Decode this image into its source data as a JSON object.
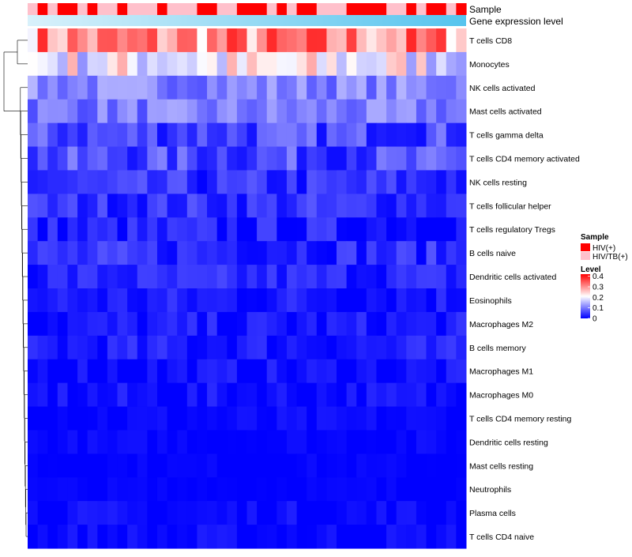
{
  "chart_data": {
    "type": "heatmap",
    "annotations": [
      {
        "name": "Sample",
        "kind": "categorical"
      },
      {
        "name": "Gene expression level",
        "kind": "continuous"
      }
    ],
    "sample_legend": {
      "title": "Sample",
      "entries": [
        {
          "label": "HIV(+)",
          "color": "#ff0000"
        },
        {
          "label": "HIV/TB(+)",
          "color": "#ffc0cb"
        }
      ]
    },
    "level_legend": {
      "title": "Level",
      "ticks": [
        "0.4",
        "0.3",
        "0.2",
        "0.1",
        "0"
      ],
      "tick_values": [
        0.4,
        0.3,
        0.2,
        0.1,
        0
      ],
      "range": [
        0,
        0.42
      ],
      "colors": [
        "#0000ff",
        "#ffffff",
        "#ff0000"
      ]
    },
    "rows": [
      "T cells CD8",
      "Monocytes",
      "NK cells activated",
      "Mast cells activated",
      "T cells gamma delta",
      "T cells CD4 memory activated",
      "NK cells resting",
      "T cells follicular helper",
      "T cells regulatory  Tregs",
      "B cells naive",
      "Dendritic cells activated",
      "Eosinophils",
      "Macrophages M2",
      "B cells memory",
      "Macrophages M1",
      "Macrophages M0",
      "T cells CD4 memory resting",
      "Dendritic cells resting",
      "Mast cells resting",
      "Neutrophils",
      "Plasma cells",
      "T cells CD4 naive"
    ],
    "columns_count": 44,
    "sample_groups": [
      1,
      0,
      1,
      0,
      0,
      1,
      0,
      1,
      1,
      0,
      1,
      1,
      1,
      0,
      1,
      1,
      1,
      0,
      0,
      1,
      1,
      0,
      0,
      0,
      1,
      0,
      1,
      0,
      0,
      1,
      1,
      1,
      0,
      0,
      0,
      0,
      1,
      1,
      0,
      1,
      0,
      0,
      1,
      0
    ],
    "row_means": [
      0.3,
      0.2,
      0.11,
      0.1,
      0.06,
      0.06,
      0.035,
      0.04,
      0.02,
      0.035,
      0.03,
      0.02,
      0.015,
      0.02,
      0.01,
      0.01,
      0.005,
      0.004,
      0.002,
      0.002,
      0.006,
      0.005
    ],
    "row_spread": [
      0.1,
      0.09,
      0.04,
      0.04,
      0.05,
      0.05,
      0.04,
      0.035,
      0.04,
      0.035,
      0.03,
      0.03,
      0.03,
      0.03,
      0.025,
      0.025,
      0.015,
      0.012,
      0.008,
      0.008,
      0.02,
      0.02
    ],
    "dendrogram_leaf_order": [
      0,
      1,
      2,
      3,
      4,
      5,
      6,
      7,
      8,
      9,
      10,
      11,
      12,
      13,
      14,
      15,
      16,
      17,
      18,
      19,
      20,
      21
    ]
  }
}
